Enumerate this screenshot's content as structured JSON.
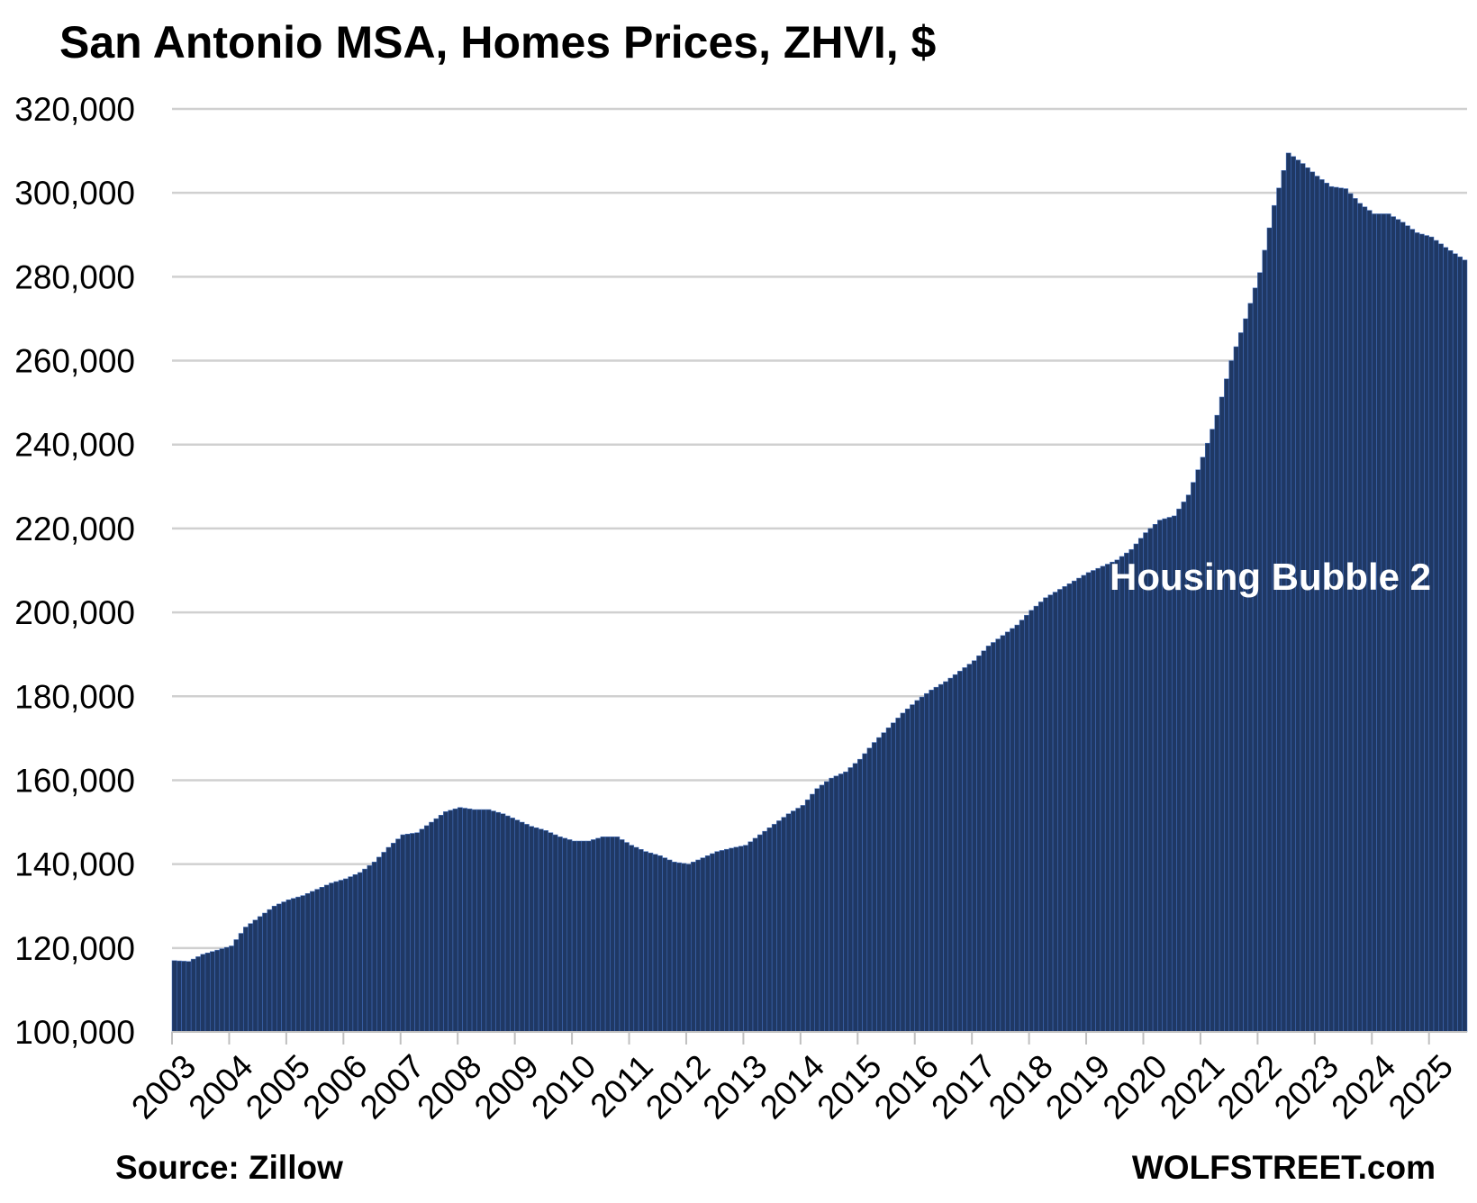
{
  "chart_data": {
    "type": "bar",
    "title": "San Antonio MSA, Homes Prices, ZHVI, $",
    "source": "Source: Zillow",
    "brand": "WOLFSTREET.com",
    "annotation": "Housing Bubble 2",
    "ylim": [
      100000,
      320000
    ],
    "y_ticks": [
      "100,000",
      "120,000",
      "140,000",
      "160,000",
      "180,000",
      "200,000",
      "220,000",
      "240,000",
      "260,000",
      "280,000",
      "300,000",
      "320,000"
    ],
    "x_ticks": [
      "2003",
      "2004",
      "2005",
      "2006",
      "2007",
      "2008",
      "2009",
      "2010",
      "2011",
      "2012",
      "2013",
      "2014",
      "2015",
      "2016",
      "2017",
      "2018",
      "2019",
      "2020",
      "2021",
      "2022",
      "2023",
      "2024",
      "2025"
    ],
    "grid": true,
    "bar_color": "#1f3864",
    "bar_edge_color": "#4472c4",
    "x_start": "2003-01",
    "x_end": "2025-08",
    "anchors": [
      [
        "2003-01",
        117000
      ],
      [
        "2003-04",
        116800
      ],
      [
        "2003-07",
        118500
      ],
      [
        "2003-10",
        119500
      ],
      [
        "2004-01",
        120500
      ],
      [
        "2004-04",
        125000
      ],
      [
        "2004-07",
        127500
      ],
      [
        "2004-10",
        130000
      ],
      [
        "2005-01",
        131500
      ],
      [
        "2005-04",
        132500
      ],
      [
        "2005-07",
        134000
      ],
      [
        "2005-10",
        135500
      ],
      [
        "2006-01",
        136500
      ],
      [
        "2006-04",
        138000
      ],
      [
        "2006-07",
        140500
      ],
      [
        "2006-10",
        144000
      ],
      [
        "2007-01",
        147000
      ],
      [
        "2007-04",
        147500
      ],
      [
        "2007-07",
        150000
      ],
      [
        "2007-10",
        152500
      ],
      [
        "2008-01",
        153500
      ],
      [
        "2008-04",
        153000
      ],
      [
        "2008-07",
        153000
      ],
      [
        "2008-10",
        152000
      ],
      [
        "2009-01",
        150500
      ],
      [
        "2009-04",
        149000
      ],
      [
        "2009-07",
        148000
      ],
      [
        "2009-10",
        146500
      ],
      [
        "2010-01",
        145500
      ],
      [
        "2010-04",
        145500
      ],
      [
        "2010-07",
        146500
      ],
      [
        "2010-10",
        146500
      ],
      [
        "2011-01",
        144500
      ],
      [
        "2011-04",
        143000
      ],
      [
        "2011-07",
        142000
      ],
      [
        "2011-10",
        140500
      ],
      [
        "2012-01",
        140000
      ],
      [
        "2012-04",
        141500
      ],
      [
        "2012-07",
        143000
      ],
      [
        "2012-10",
        143800
      ],
      [
        "2013-01",
        144500
      ],
      [
        "2013-04",
        147000
      ],
      [
        "2013-07",
        149500
      ],
      [
        "2013-10",
        152000
      ],
      [
        "2014-01",
        154000
      ],
      [
        "2014-04",
        158000
      ],
      [
        "2014-07",
        160500
      ],
      [
        "2014-10",
        162000
      ],
      [
        "2015-01",
        165000
      ],
      [
        "2015-04",
        169000
      ],
      [
        "2015-07",
        172500
      ],
      [
        "2015-10",
        176000
      ],
      [
        "2016-01",
        179000
      ],
      [
        "2016-04",
        181500
      ],
      [
        "2016-07",
        183500
      ],
      [
        "2016-10",
        186000
      ],
      [
        "2017-01",
        188500
      ],
      [
        "2017-04",
        192000
      ],
      [
        "2017-07",
        194500
      ],
      [
        "2017-10",
        197000
      ],
      [
        "2018-01",
        200500
      ],
      [
        "2018-04",
        203500
      ],
      [
        "2018-07",
        205500
      ],
      [
        "2018-10",
        207500
      ],
      [
        "2019-01",
        209500
      ],
      [
        "2019-04",
        211000
      ],
      [
        "2019-07",
        212500
      ],
      [
        "2019-10",
        215000
      ],
      [
        "2020-01",
        219000
      ],
      [
        "2020-04",
        222000
      ],
      [
        "2020-07",
        223000
      ],
      [
        "2020-10",
        228000
      ],
      [
        "2021-01",
        237000
      ],
      [
        "2021-04",
        247000
      ],
      [
        "2021-07",
        260000
      ],
      [
        "2021-10",
        270000
      ],
      [
        "2022-01",
        281000
      ],
      [
        "2022-04",
        297000
      ],
      [
        "2022-07",
        309500
      ],
      [
        "2022-10",
        307000
      ],
      [
        "2023-01",
        304000
      ],
      [
        "2023-04",
        301500
      ],
      [
        "2023-07",
        301000
      ],
      [
        "2023-10",
        297500
      ],
      [
        "2024-01",
        295000
      ],
      [
        "2024-04",
        295000
      ],
      [
        "2024-07",
        293000
      ],
      [
        "2024-10",
        290500
      ],
      [
        "2025-01",
        289500
      ],
      [
        "2025-04",
        287000
      ],
      [
        "2025-08",
        284000
      ]
    ]
  }
}
